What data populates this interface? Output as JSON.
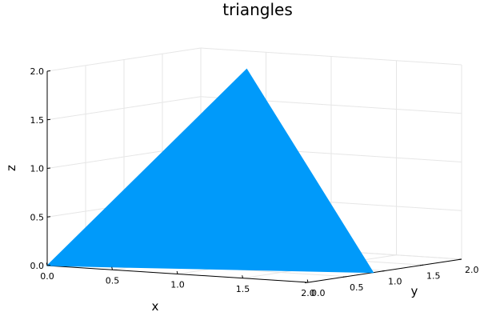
{
  "chart_data": {
    "type": "surface3d",
    "title": "triangles",
    "xlabel": "x",
    "ylabel": "y",
    "zlabel": "z",
    "xlim": [
      0,
      2
    ],
    "ylim": [
      0,
      2
    ],
    "zlim": [
      0,
      2
    ],
    "x_ticks": [
      {
        "value": 0,
        "label": "0.0"
      },
      {
        "value": 0.5,
        "label": "0.5"
      },
      {
        "value": 1,
        "label": "1.0"
      },
      {
        "value": 1.5,
        "label": "1.5"
      },
      {
        "value": 2,
        "label": "2.0"
      }
    ],
    "y_ticks": [
      {
        "value": 0,
        "label": "0.0"
      },
      {
        "value": 0.5,
        "label": "0.5"
      },
      {
        "value": 1,
        "label": "1.0"
      },
      {
        "value": 1.5,
        "label": "1.5"
      },
      {
        "value": 2,
        "label": "2.0"
      }
    ],
    "z_ticks": [
      {
        "value": 0,
        "label": "0.0"
      },
      {
        "value": 0.5,
        "label": "0.5"
      },
      {
        "value": 1,
        "label": "1.0"
      },
      {
        "value": 1.5,
        "label": "1.5"
      },
      {
        "value": 2,
        "label": "2.0"
      }
    ],
    "triangles": [
      {
        "vertices": [
          {
            "x": 0,
            "y": 0,
            "z": 0
          },
          {
            "x": 1,
            "y": 0.9,
            "z": 2
          },
          {
            "x": 2,
            "y": 0.85,
            "z": 0
          }
        ],
        "color": "#009AFA"
      }
    ],
    "grid": true,
    "legend": "none"
  }
}
